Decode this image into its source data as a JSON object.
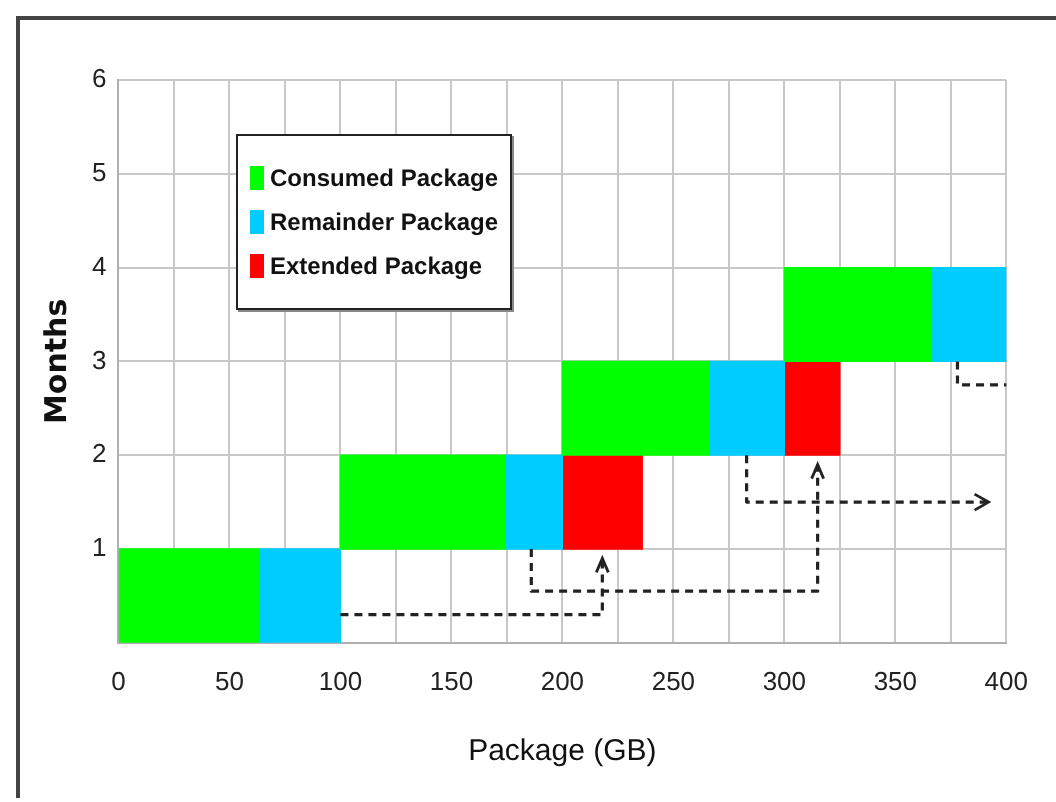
{
  "chart_data": {
    "type": "bar",
    "orientation": "horizontal",
    "xlabel": "Package (GB)",
    "ylabel": "Months",
    "xlim": [
      0,
      400
    ],
    "xticks": [
      0,
      {
        "value": 25,
        "label": null
      },
      50,
      {
        "value": 75,
        "label": null
      },
      100,
      {
        "value": 125,
        "label": null
      },
      150,
      {
        "value": 175,
        "label": null
      },
      200,
      {
        "value": 225,
        "label": null
      },
      250,
      {
        "value": 275,
        "label": null
      },
      300,
      {
        "value": 325,
        "label": null
      },
      350,
      {
        "value": 375,
        "label": null
      },
      400
    ],
    "ylim": [
      0,
      6
    ],
    "yticks": [
      1,
      2,
      3,
      4,
      5,
      6
    ],
    "grid": true,
    "legend": "top left",
    "series": [
      {
        "name": "Consumed Package",
        "color": "#00ff00",
        "x": [
          0.5,
          1.5,
          2.5,
          3.5
        ],
        "base": [
          0,
          100,
          200,
          300
        ],
        "values": [
          63,
          74,
          66,
          66
        ]
      },
      {
        "name": "Remainder Package",
        "color": "#00ccff",
        "x": [
          0.5,
          1.5,
          2.5,
          3.5
        ],
        "base": [
          63,
          174,
          266,
          366
        ],
        "values": [
          37,
          26,
          34,
          34
        ]
      },
      {
        "name": "Extended Package",
        "color": "#ff0000",
        "x": [
          1.5,
          2.5
        ],
        "base": [
          200,
          300
        ],
        "values": [
          36,
          25
        ]
      }
    ]
  }
}
